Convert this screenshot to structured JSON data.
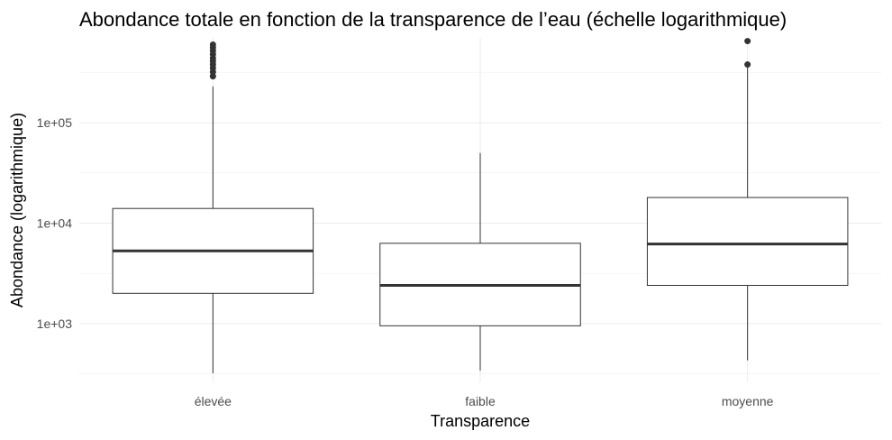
{
  "chart_data": {
    "type": "boxplot",
    "title": "Abondance totale en fonction de la transparence de l’eau (échelle logarithmique)",
    "xlabel": "Transparence",
    "ylabel": "Abondance (logarithmique)",
    "y_scale": "log10",
    "ylim": [
      260,
      700000
    ],
    "y_ticks": [
      1000,
      10000,
      100000
    ],
    "y_tick_labels": [
      "1e+03",
      "1e+04",
      "1e+05"
    ],
    "grid": true,
    "legend": "none",
    "colors": {
      "box_stroke": "#333333",
      "grid": "#ebebeb",
      "text_tick": "#4d4d4d"
    },
    "categories": [
      "élevée",
      "faible",
      "moyenne"
    ],
    "boxes": [
      {
        "category": "élevée",
        "whisker_low": 320,
        "q1": 2000,
        "median": 5300,
        "q3": 14000,
        "whisker_high": 230000,
        "outliers": [
          290000,
          320000,
          350000,
          380000,
          410000,
          440000,
          480000,
          520000,
          560000,
          600000
        ]
      },
      {
        "category": "faible",
        "whisker_low": 340,
        "q1": 950,
        "median": 2400,
        "q3": 6300,
        "whisker_high": 50000,
        "outliers": []
      },
      {
        "category": "moyenne",
        "whisker_low": 430,
        "q1": 2400,
        "median": 6200,
        "q3": 18000,
        "whisker_high": 380000,
        "outliers": [
          380000,
          650000
        ]
      }
    ]
  }
}
